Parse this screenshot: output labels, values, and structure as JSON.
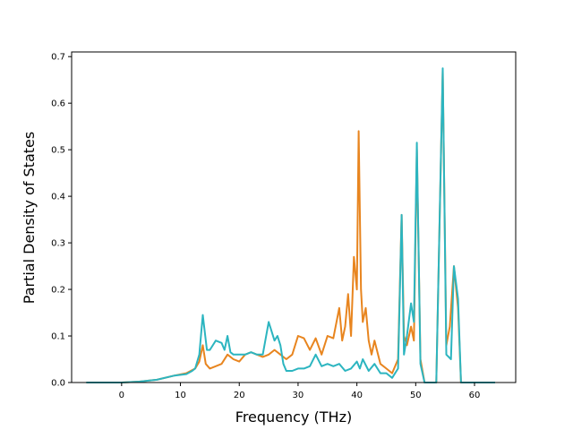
{
  "chart_data": {
    "type": "line",
    "xlabel": "Frequency (THz)",
    "ylabel": "Partial Density of States",
    "xlim": [
      -8.5,
      67
    ],
    "ylim": [
      0,
      0.71
    ],
    "xticks": [
      "0",
      "10",
      "20",
      "30",
      "40",
      "50",
      "60"
    ],
    "yticks": [
      "0.0",
      "0.1",
      "0.2",
      "0.3",
      "0.4",
      "0.5",
      "0.6",
      "0.7"
    ],
    "grid": false,
    "legend": "none",
    "series": [
      {
        "color": "#e8851f",
        "points": [
          [
            -6,
            0
          ],
          [
            0,
            0
          ],
          [
            3,
            0.002
          ],
          [
            6,
            0.006
          ],
          [
            9,
            0.015
          ],
          [
            11,
            0.02
          ],
          [
            12.5,
            0.03
          ],
          [
            13.2,
            0.045
          ],
          [
            13.8,
            0.08
          ],
          [
            14.3,
            0.04
          ],
          [
            15,
            0.03
          ],
          [
            16,
            0.035
          ],
          [
            17,
            0.04
          ],
          [
            18,
            0.06
          ],
          [
            19,
            0.05
          ],
          [
            20,
            0.045
          ],
          [
            21,
            0.06
          ],
          [
            22,
            0.065
          ],
          [
            23,
            0.06
          ],
          [
            24,
            0.055
          ],
          [
            25,
            0.06
          ],
          [
            26,
            0.07
          ],
          [
            27,
            0.06
          ],
          [
            28,
            0.05
          ],
          [
            29,
            0.06
          ],
          [
            30,
            0.1
          ],
          [
            31,
            0.095
          ],
          [
            32,
            0.07
          ],
          [
            33,
            0.095
          ],
          [
            34,
            0.06
          ],
          [
            35,
            0.1
          ],
          [
            36,
            0.095
          ],
          [
            37,
            0.16
          ],
          [
            37.5,
            0.09
          ],
          [
            38,
            0.12
          ],
          [
            38.5,
            0.19
          ],
          [
            39,
            0.1
          ],
          [
            39.5,
            0.27
          ],
          [
            40,
            0.2
          ],
          [
            40.3,
            0.54
          ],
          [
            40.7,
            0.2
          ],
          [
            41,
            0.13
          ],
          [
            41.5,
            0.16
          ],
          [
            42,
            0.09
          ],
          [
            42.5,
            0.06
          ],
          [
            43,
            0.09
          ],
          [
            44,
            0.04
          ],
          [
            45,
            0.03
          ],
          [
            46,
            0.02
          ],
          [
            47,
            0.05
          ],
          [
            47.6,
            0.36
          ],
          [
            48,
            0.1
          ],
          [
            48.5,
            0.08
          ],
          [
            49.2,
            0.12
          ],
          [
            49.7,
            0.09
          ],
          [
            50.2,
            0.5
          ],
          [
            50.8,
            0.05
          ],
          [
            51.5,
            0
          ],
          [
            52.5,
            0
          ],
          [
            53.5,
            0
          ],
          [
            54.6,
            0.67
          ],
          [
            55.2,
            0.08
          ],
          [
            55.8,
            0.12
          ],
          [
            56.5,
            0.25
          ],
          [
            57.2,
            0.16
          ],
          [
            57.7,
            0
          ],
          [
            63.5,
            0
          ]
        ]
      },
      {
        "color": "#2cb5c0",
        "points": [
          [
            -6,
            0
          ],
          [
            0,
            0
          ],
          [
            3,
            0.002
          ],
          [
            6,
            0.006
          ],
          [
            9,
            0.015
          ],
          [
            11,
            0.018
          ],
          [
            12,
            0.025
          ],
          [
            12.5,
            0.03
          ],
          [
            13.2,
            0.06
          ],
          [
            13.8,
            0.145
          ],
          [
            14.5,
            0.07
          ],
          [
            15,
            0.07
          ],
          [
            16,
            0.09
          ],
          [
            17,
            0.085
          ],
          [
            17.5,
            0.07
          ],
          [
            18,
            0.1
          ],
          [
            18.5,
            0.065
          ],
          [
            19,
            0.06
          ],
          [
            20,
            0.06
          ],
          [
            21,
            0.06
          ],
          [
            22,
            0.065
          ],
          [
            23,
            0.06
          ],
          [
            24,
            0.06
          ],
          [
            25,
            0.13
          ],
          [
            26,
            0.09
          ],
          [
            26.5,
            0.1
          ],
          [
            27,
            0.08
          ],
          [
            27.5,
            0.04
          ],
          [
            28,
            0.025
          ],
          [
            29,
            0.025
          ],
          [
            30,
            0.03
          ],
          [
            31,
            0.03
          ],
          [
            32,
            0.035
          ],
          [
            33,
            0.06
          ],
          [
            34,
            0.035
          ],
          [
            35,
            0.04
          ],
          [
            36,
            0.035
          ],
          [
            37,
            0.04
          ],
          [
            38,
            0.025
          ],
          [
            39,
            0.03
          ],
          [
            40,
            0.045
          ],
          [
            40.5,
            0.03
          ],
          [
            41,
            0.05
          ],
          [
            42,
            0.025
          ],
          [
            43,
            0.04
          ],
          [
            44,
            0.02
          ],
          [
            45,
            0.02
          ],
          [
            46,
            0.01
          ],
          [
            47,
            0.03
          ],
          [
            47.6,
            0.36
          ],
          [
            48,
            0.06
          ],
          [
            48.5,
            0.1
          ],
          [
            49.2,
            0.17
          ],
          [
            49.7,
            0.13
          ],
          [
            50.2,
            0.515
          ],
          [
            50.8,
            0.04
          ],
          [
            51.5,
            0
          ],
          [
            53.5,
            0
          ],
          [
            54.6,
            0.675
          ],
          [
            55.2,
            0.06
          ],
          [
            56,
            0.05
          ],
          [
            56.5,
            0.25
          ],
          [
            57.2,
            0.18
          ],
          [
            57.7,
            0
          ],
          [
            63.5,
            0
          ]
        ]
      }
    ]
  }
}
